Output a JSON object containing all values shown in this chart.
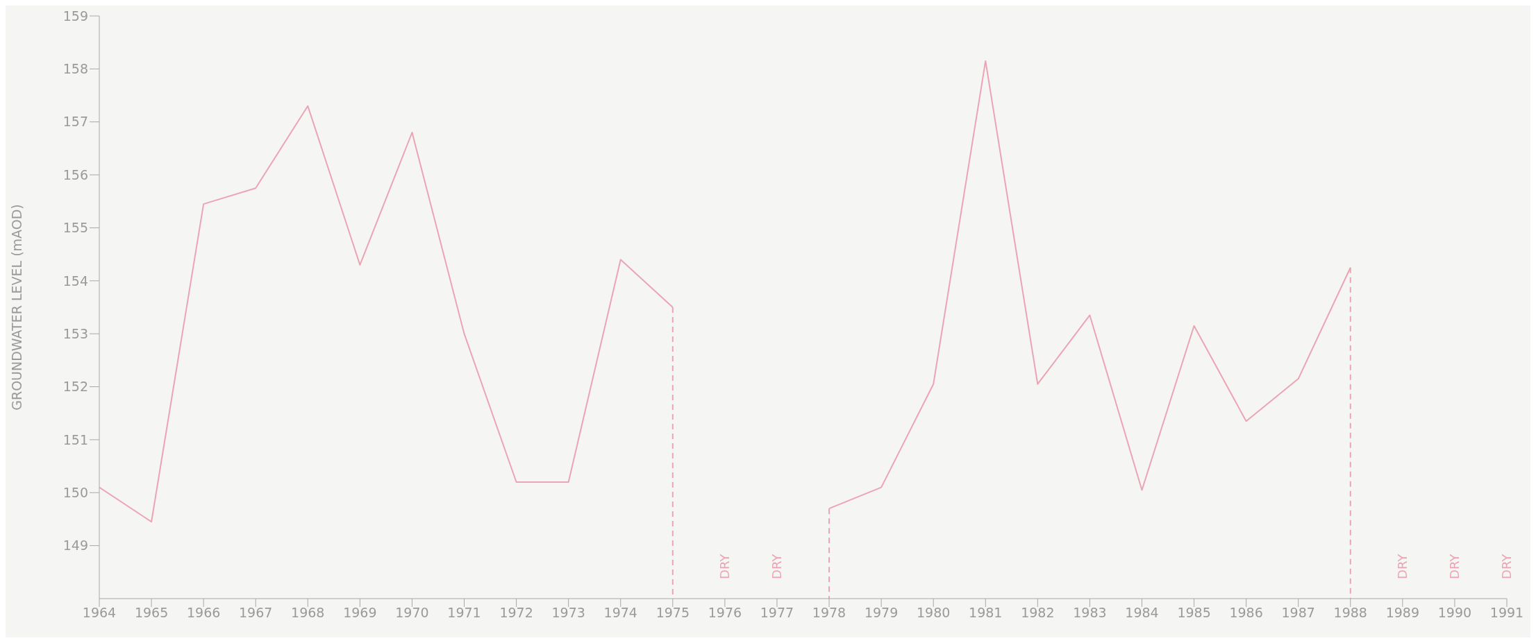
{
  "chart_data": {
    "type": "line",
    "ylabel": "GROUNDWATER LEVEL (mAOD)",
    "xlim": [
      1964,
      1991
    ],
    "xticks": [
      1964,
      1965,
      1966,
      1967,
      1968,
      1969,
      1970,
      1971,
      1972,
      1973,
      1974,
      1975,
      1976,
      1977,
      1978,
      1979,
      1980,
      1981,
      1982,
      1983,
      1984,
      1985,
      1986,
      1987,
      1988,
      1989,
      1990,
      1991
    ],
    "ylim": [
      148,
      159
    ],
    "yticks": [
      149,
      150,
      151,
      152,
      153,
      154,
      155,
      156,
      157,
      158,
      159
    ],
    "series": [
      {
        "color": "#eba4b6",
        "x": [
          1964,
          1965,
          1966,
          1967,
          1968,
          1969,
          1970,
          1971,
          1972,
          1973,
          1974,
          1975,
          1976,
          1977,
          1978,
          1979,
          1980,
          1981,
          1982,
          1983,
          1984,
          1985,
          1986,
          1987,
          1988
        ],
        "values": [
          150.1,
          149.45,
          155.45,
          155.75,
          157.3,
          154.3,
          156.8,
          153.0,
          150.2,
          150.2,
          154.4,
          153.5,
          null,
          null,
          149.7,
          150.1,
          152.05,
          158.15,
          152.05,
          153.35,
          150.05,
          153.15,
          151.35,
          152.15,
          154.25
        ]
      },
      {
        "type": "line",
        "line_style": "dashed",
        "color": "#eba4b6",
        "x": [
          1975,
          1975
        ],
        "values": [
          153.5,
          148
        ]
      },
      {
        "type": "line",
        "line_style": "dashed",
        "color": "#eba4b6",
        "x": [
          1978,
          1978
        ],
        "values": [
          149.7,
          148
        ]
      },
      {
        "type": "line",
        "line_style": "dashed",
        "color": "#eba4b6",
        "x": [
          1988,
          1988
        ],
        "values": [
          154.25,
          148
        ]
      }
    ],
    "annotations": [
      "DRY",
      "DRY",
      "DRY",
      "DRY",
      "DRY"
    ]
  }
}
